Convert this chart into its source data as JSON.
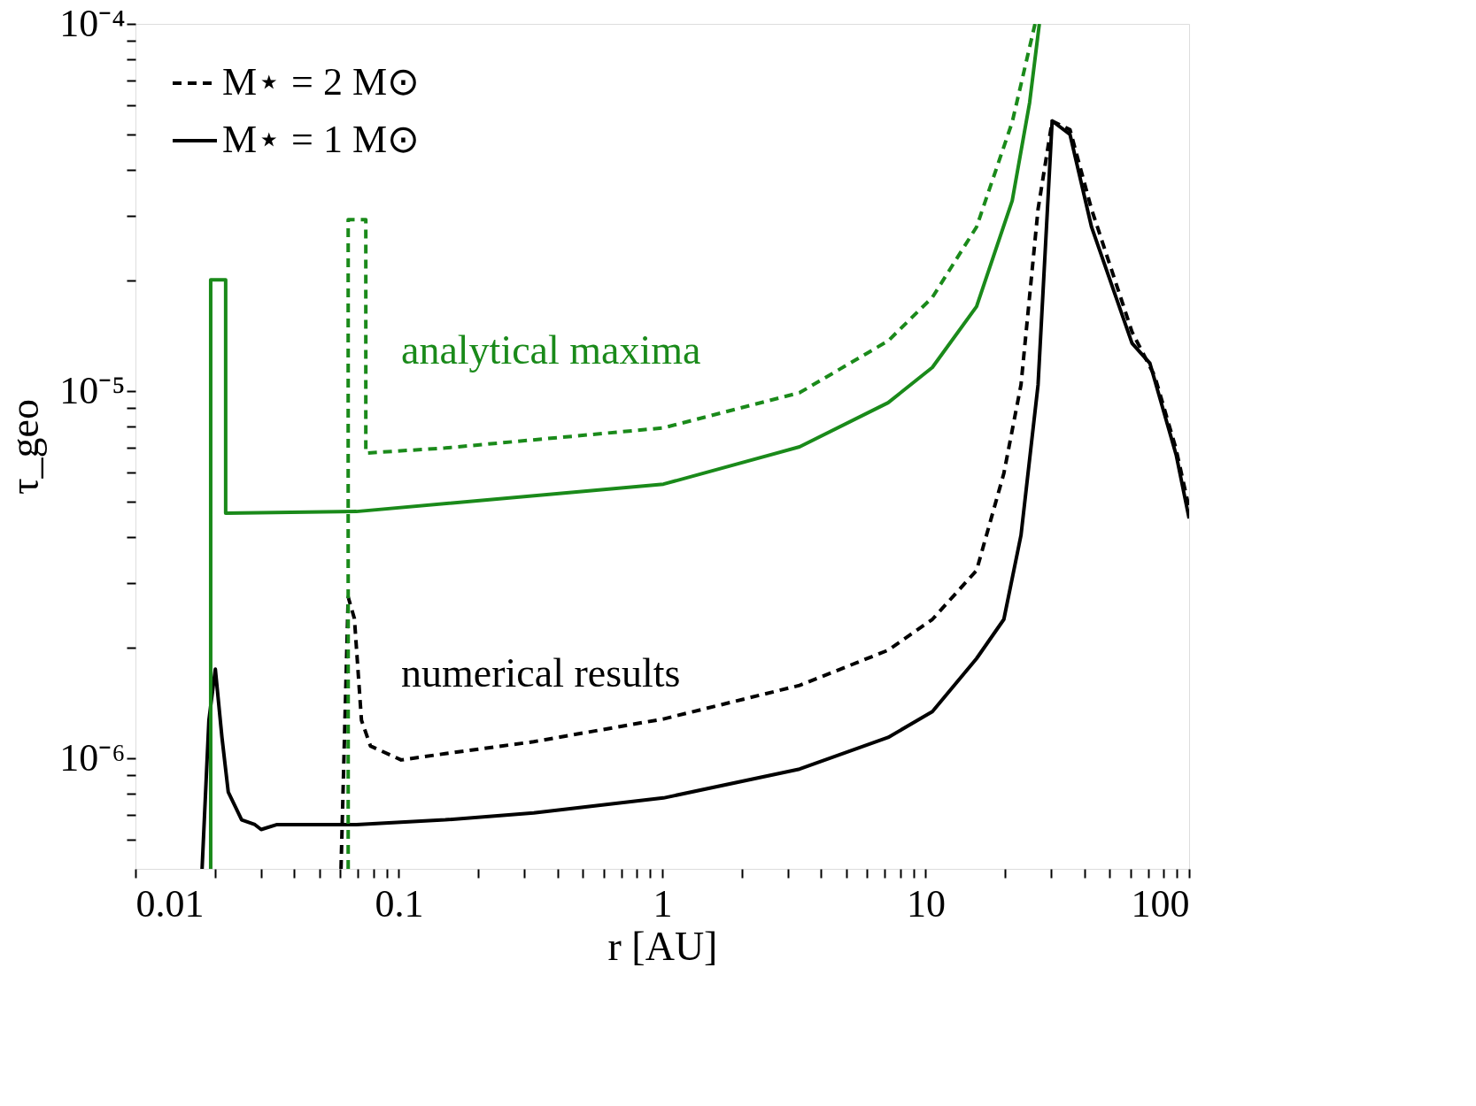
{
  "chart_data": {
    "type": "line",
    "xlabel": "r [AU]",
    "ylabel": "τ_geo",
    "log": "xy",
    "legend": "top left",
    "xlim": [
      0.01,
      100
    ],
    "ylim": [
      5e-07,
      0.0001
    ],
    "xticks": [
      0.01,
      {
        "value": 0.02,
        "label": null
      },
      {
        "value": 0.03,
        "label": null
      },
      {
        "value": 0.04,
        "label": null
      },
      {
        "value": 0.05,
        "label": null
      },
      {
        "value": 0.06,
        "label": null
      },
      {
        "value": 0.07,
        "label": null
      },
      {
        "value": 0.08,
        "label": null
      },
      {
        "value": 0.09,
        "label": null
      },
      0.1,
      {
        "value": 0.2,
        "label": null
      },
      {
        "value": 0.3,
        "label": null
      },
      {
        "value": 0.4,
        "label": null
      },
      {
        "value": 0.5,
        "label": null
      },
      {
        "value": 0.6,
        "label": null
      },
      {
        "value": 0.7,
        "label": null
      },
      {
        "value": 0.8,
        "label": null
      },
      {
        "value": 0.9,
        "label": null
      },
      1,
      {
        "value": 2,
        "label": null
      },
      {
        "value": 3,
        "label": null
      },
      {
        "value": 4,
        "label": null
      },
      {
        "value": 5,
        "label": null
      },
      {
        "value": 6,
        "label": null
      },
      {
        "value": 7,
        "label": null
      },
      {
        "value": 8,
        "label": null
      },
      {
        "value": 9,
        "label": null
      },
      10,
      {
        "value": 20,
        "label": null
      },
      {
        "value": 30,
        "label": null
      },
      {
        "value": 40,
        "label": null
      },
      {
        "value": 50,
        "label": null
      },
      {
        "value": 60,
        "label": null
      },
      {
        "value": 70,
        "label": null
      },
      {
        "value": 80,
        "label": null
      },
      {
        "value": 90,
        "label": null
      },
      100
    ],
    "yticks": [
      {
        "value": 6e-07,
        "label": null
      },
      {
        "value": 7e-07,
        "label": null
      },
      {
        "value": 8e-07,
        "label": null
      },
      {
        "value": 9e-07,
        "label": null
      },
      {
        "value": 1e-06,
        "label": "10⁻⁶"
      },
      {
        "value": 2e-06,
        "label": null
      },
      {
        "value": 3e-06,
        "label": null
      },
      {
        "value": 4e-06,
        "label": null
      },
      {
        "value": 5e-06,
        "label": null
      },
      {
        "value": 6e-06,
        "label": null
      },
      {
        "value": 7e-06,
        "label": null
      },
      {
        "value": 8e-06,
        "label": null
      },
      {
        "value": 9e-06,
        "label": null
      },
      {
        "value": 1e-05,
        "label": "10⁻⁵"
      },
      {
        "value": 2e-05,
        "label": null
      },
      {
        "value": 3e-05,
        "label": null
      },
      {
        "value": 4e-05,
        "label": null
      },
      {
        "value": 5e-05,
        "label": null
      },
      {
        "value": 6e-05,
        "label": null
      },
      {
        "value": 7e-05,
        "label": null
      },
      {
        "value": 8e-05,
        "label": null
      },
      {
        "value": 9e-05,
        "label": null
      },
      {
        "value": 0.0001,
        "label": "10⁻⁴"
      }
    ],
    "annotations": [
      "analytical maxima",
      "numerical results"
    ],
    "series": [
      {
        "name": "M⋆ = 2 M⊙",
        "color": "#000000",
        "line_style": "dashed",
        "x": [
          0.0603,
          0.0642,
          0.0678,
          0.0721,
          0.078,
          0.102,
          0.15,
          0.325,
          1.01,
          3.32,
          7.2,
          10.6,
          15.6,
          19.8,
          23,
          26.7,
          30.2,
          35.3,
          42.6,
          60.7,
          74,
          89,
          100
        ],
        "values": [
          5e-07,
          2.75e-06,
          2.4e-06,
          1.27e-06,
          1.08e-06,
          9.9e-07,
          1.03e-06,
          1.11e-06,
          1.28e-06,
          1.58e-06,
          1.97e-06,
          2.39e-06,
          3.25e-06,
          5.97e-06,
          1.04e-05,
          3.13e-05,
          5.44e-05,
          5.15e-05,
          3.13e-05,
          1.45e-05,
          1.1e-05,
          7e-06,
          4.8e-06
        ]
      },
      {
        "name": "M⋆ = 1 M⊙",
        "color": "#000000",
        "line_style": "solid",
        "x": [
          0.0179,
          0.019,
          0.0201,
          0.0213,
          0.0225,
          0.0253,
          0.0284,
          0.03,
          0.0345,
          0.069,
          0.15,
          0.325,
          1.01,
          3.32,
          7.2,
          10.6,
          15.6,
          19.8,
          23,
          26.7,
          30.2,
          35.3,
          42.6,
          60.7,
          71,
          89.3,
          100
        ],
        "values": [
          5e-07,
          1.27e-06,
          1.75e-06,
          1.14e-06,
          8.1e-07,
          6.8e-07,
          6.6e-07,
          6.4e-07,
          6.6e-07,
          6.6e-07,
          6.8e-07,
          7.1e-07,
          7.8e-07,
          9.35e-07,
          1.14e-06,
          1.34e-06,
          1.87e-06,
          2.39e-06,
          4.05e-06,
          1.04e-05,
          5.44e-05,
          5e-05,
          2.8e-05,
          1.35e-05,
          1.19e-05,
          6.7e-06,
          4.5e-06
        ]
      },
      {
        "color": "#1a8a1a",
        "line_style": "dashed",
        "x": [
          0.0642,
          0.0642,
          0.0749,
          0.0749,
          0.15,
          1.01,
          3.32,
          7.2,
          10.6,
          15.6,
          21.3,
          26
        ],
        "values": [
          5e-07,
          2.93e-05,
          2.93e-05,
          6.78e-06,
          7e-06,
          7.94e-06,
          9.9e-06,
          1.37e-05,
          1.8e-05,
          2.8e-05,
          5.4e-05,
          0.0001
        ]
      },
      {
        "color": "#1a8a1a",
        "line_style": "solid",
        "x": [
          0.0193,
          0.0193,
          0.022,
          0.022,
          0.069,
          1.01,
          3.32,
          7.2,
          10.6,
          15.6,
          21.3,
          24.8,
          27
        ],
        "values": [
          5e-07,
          2.01e-05,
          2.01e-05,
          4.65e-06,
          4.7e-06,
          5.58e-06,
          7.05e-06,
          9.3e-06,
          1.16e-05,
          1.7e-05,
          3.3e-05,
          6.1e-05,
          0.0001
        ]
      }
    ]
  }
}
